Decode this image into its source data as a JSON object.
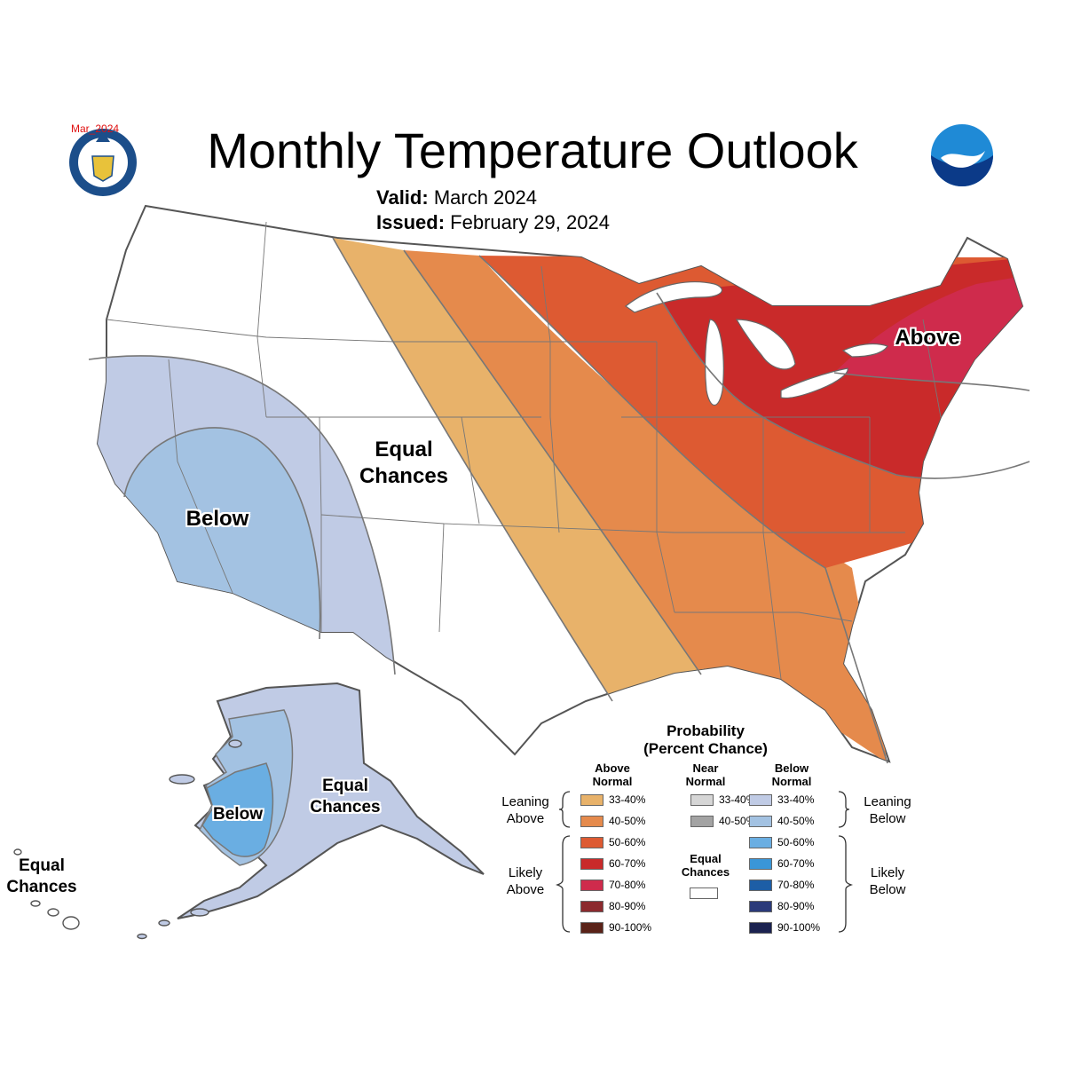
{
  "title": "Monthly Temperature Outlook",
  "valid_label": "Valid:",
  "valid_value": "March 2024",
  "issued_label": "Issued:",
  "issued_value": "February 29, 2024",
  "stamp": "Mar_2024",
  "labels": {
    "above": "Above",
    "below_conus": "Below",
    "equal_line1": "Equal",
    "equal_line2": "Chances",
    "below_alaska": "Below",
    "ak_equal_line1": "Equal",
    "ak_equal_line2": "Chances",
    "hi_equal_line1": "Equal",
    "hi_equal_line2": "Chances"
  },
  "legend": {
    "title_line1": "Probability",
    "title_line2": "(Percent Chance)",
    "above_header_1": "Above",
    "above_header_2": "Normal",
    "near_header_1": "Near",
    "near_header_2": "Normal",
    "below_header_1": "Below",
    "below_header_2": "Normal",
    "leaning_above_1": "Leaning",
    "leaning_above_2": "Above",
    "likely_above_1": "Likely",
    "likely_above_2": "Above",
    "leaning_below_1": "Leaning",
    "leaning_below_2": "Below",
    "likely_below_1": "Likely",
    "likely_below_2": "Below",
    "ec_1": "Equal",
    "ec_2": "Chances",
    "above": [
      {
        "range": "33-40%",
        "color": "#e8b26a"
      },
      {
        "range": "40-50%",
        "color": "#e58a4c"
      },
      {
        "range": "50-60%",
        "color": "#dd5a32"
      },
      {
        "range": "60-70%",
        "color": "#c92a2a"
      },
      {
        "range": "70-80%",
        "color": "#cf2b4c"
      },
      {
        "range": "80-90%",
        "color": "#8c2a2e"
      },
      {
        "range": "90-100%",
        "color": "#5a2218"
      }
    ],
    "near": [
      {
        "range": "33-40%",
        "color": "#d6d6d6"
      },
      {
        "range": "40-50%",
        "color": "#a3a3a3"
      }
    ],
    "below": [
      {
        "range": "33-40%",
        "color": "#c0cbe5"
      },
      {
        "range": "40-50%",
        "color": "#a3c2e2"
      },
      {
        "range": "50-60%",
        "color": "#6aaee2"
      },
      {
        "range": "60-70%",
        "color": "#3a96d8"
      },
      {
        "range": "70-80%",
        "color": "#1d5ea6"
      },
      {
        "range": "80-90%",
        "color": "#2b3a7a"
      },
      {
        "range": "90-100%",
        "color": "#1b2250"
      }
    ]
  }
}
